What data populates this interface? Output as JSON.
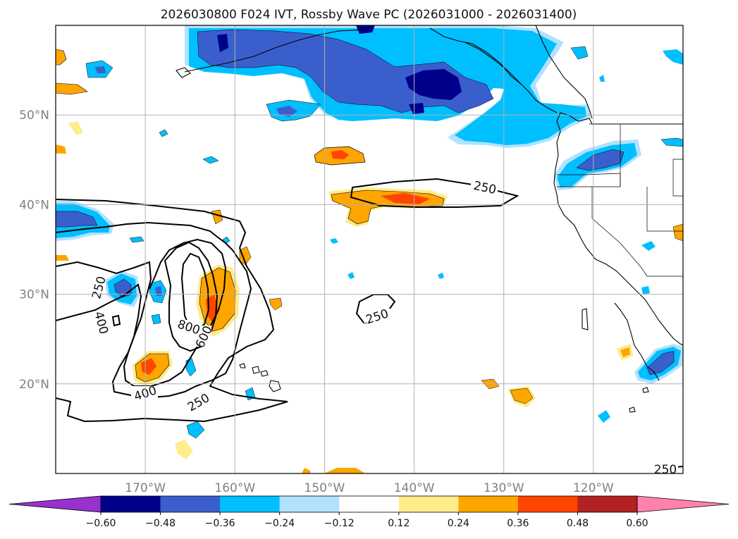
{
  "title": "2026030800 F024 IVT, Rossby Wave PC (2026031000 - 2026031400)",
  "axes": {
    "lon_ticks": [
      "170°W",
      "160°W",
      "150°W",
      "140°W",
      "130°W",
      "120°W"
    ],
    "lat_ticks": [
      "20°N",
      "30°N",
      "40°N",
      "50°N"
    ],
    "lon_range": [
      -180,
      -110
    ],
    "lat_range": [
      10,
      60
    ],
    "grid": true
  },
  "colorbar": {
    "ticks": [
      "−0.60",
      "−0.48",
      "−0.36",
      "−0.24",
      "−0.12",
      "0.12",
      "0.24",
      "0.36",
      "0.48",
      "0.60"
    ],
    "colors": [
      "#9932cc",
      "#00008b",
      "#3a5fcd",
      "#00bfff",
      "#b0e2ff",
      "#ffffff",
      "#ffec8b",
      "#ffa500",
      "#ff4500",
      "#b22222",
      "#ff82ab"
    ],
    "extend": "both",
    "orientation": "horizontal"
  },
  "contour_labels": {
    "c250_a": "250",
    "c250_b": "250",
    "c250_c": "250",
    "c250_d": "250",
    "c250_e": "250",
    "c400_a": "400",
    "c400_b": "400",
    "c600": "600",
    "c800": "800"
  },
  "colors": {
    "pos_weak": "#ffec8b",
    "pos_mod": "#ffa500",
    "pos_strong": "#ff4500",
    "neg_weak": "#b0e2ff",
    "neg_mod": "#00bfff",
    "neg_strong": "#3a5fcd",
    "neg_vstrong": "#00008b",
    "contour": "#000000",
    "grid": "#b0b0b0"
  }
}
